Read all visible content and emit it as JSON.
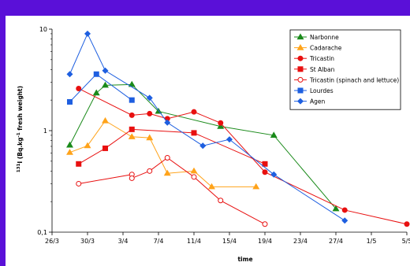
{
  "chart_data": {
    "type": "line",
    "xlabel": "time",
    "ylabel": "131I (Bq.kg-1 fresh weight)",
    "ylabel_parts": {
      "sup": "131",
      "main": "I (Bq.kg",
      "sup2": "-1",
      "rest": " fresh weight)"
    },
    "yscale": "log",
    "ylim": [
      0.1,
      10
    ],
    "y_ticks": [
      {
        "v": 0.1,
        "label": "0,1"
      },
      {
        "v": 1,
        "label": "1"
      },
      {
        "v": 10,
        "label": "10"
      }
    ],
    "x_ticks": [
      "26/3",
      "30/3",
      "3/4",
      "7/4",
      "11/4",
      "15/4",
      "19/4",
      "23/4",
      "27/4",
      "1/5",
      "5/5"
    ],
    "grid": false,
    "legend_position": "top-right",
    "series": [
      {
        "name": "Narbonne",
        "color": "#1a8a1a",
        "marker": "triangle",
        "filled": true,
        "points": [
          [
            "28/3",
            0.72
          ],
          [
            "31/3",
            2.35
          ],
          [
            "1/4",
            2.8
          ],
          [
            "4/4",
            2.85
          ],
          [
            "7/4",
            1.55
          ],
          [
            "14/4",
            1.1
          ],
          [
            "20/4",
            0.9
          ],
          [
            "27/4",
            0.17
          ]
        ]
      },
      {
        "name": "Cadarache",
        "color": "#ffa31a",
        "marker": "triangle",
        "filled": true,
        "points": [
          [
            "28/3",
            0.61
          ],
          [
            "30/3",
            0.71
          ],
          [
            "1/4",
            1.25
          ],
          [
            "4/4",
            0.87
          ],
          [
            "6/4",
            0.85
          ],
          [
            "8/4",
            0.38
          ],
          [
            "11/4",
            0.4
          ],
          [
            "13/4",
            0.28
          ],
          [
            "18/4",
            0.28
          ]
        ]
      },
      {
        "name": "Tricastin",
        "color": "#e81010",
        "marker": "circle",
        "filled": true,
        "points": [
          [
            "29/3",
            2.6
          ],
          [
            "4/4",
            1.42
          ],
          [
            "6/4",
            1.47
          ],
          [
            "8/4",
            1.31
          ],
          [
            "11/4",
            1.53
          ],
          [
            "14/4",
            1.19
          ],
          [
            "19/4",
            0.39
          ],
          [
            "28/4",
            0.165
          ],
          [
            "5/5",
            0.12
          ]
        ]
      },
      {
        "name": "St Alban",
        "color": "#e81010",
        "marker": "square",
        "filled": true,
        "points": [
          [
            "29/3",
            0.47
          ],
          [
            "1/4",
            0.67
          ],
          [
            "4/4",
            1.03
          ],
          [
            "11/4",
            0.95
          ],
          [
            "19/4",
            0.47
          ]
        ]
      },
      {
        "name": "Tricastin (spinach and lettuce)",
        "color": "#e81010",
        "marker": "circle",
        "filled": false,
        "points": [
          [
            "29/3",
            0.3
          ],
          [
            "4/4",
            0.37
          ],
          [
            "4/4",
            0.34
          ],
          [
            "6/4",
            0.4
          ],
          [
            "8/4",
            0.54
          ],
          [
            "11/4",
            0.35
          ],
          [
            "14/4",
            0.205
          ],
          [
            "19/4",
            0.12
          ]
        ]
      },
      {
        "name": "Lourdes",
        "color": "#1e5fe0",
        "marker": "square",
        "filled": true,
        "points": [
          [
            "28/3",
            1.92
          ],
          [
            "31/3",
            3.6
          ],
          [
            "4/4",
            2.0
          ]
        ]
      },
      {
        "name": "Agen",
        "color": "#1e5fe0",
        "marker": "diamond",
        "filled": true,
        "points": [
          [
            "28/3",
            3.6
          ],
          [
            "30/3",
            9.0
          ],
          [
            "1/4",
            3.9
          ],
          [
            "6/4",
            2.1
          ],
          [
            "8/4",
            1.2
          ],
          [
            "12/4",
            0.71
          ],
          [
            "15/4",
            0.82
          ],
          [
            "20/4",
            0.37
          ],
          [
            "28/4",
            0.13
          ]
        ]
      }
    ]
  }
}
